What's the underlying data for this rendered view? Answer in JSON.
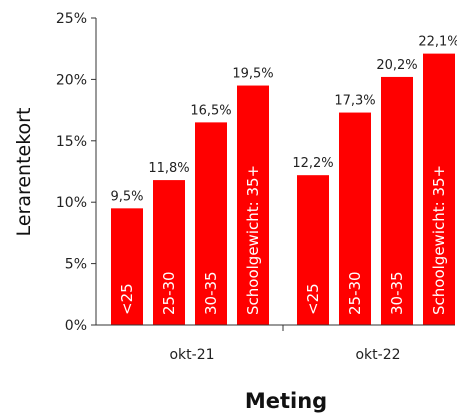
{
  "chart_data": {
    "type": "bar",
    "categories": [
      "okt-21",
      "okt-22"
    ],
    "series": [
      {
        "name": "<25",
        "values": [
          9.5,
          12.2
        ]
      },
      {
        "name": "25-30",
        "values": [
          11.8,
          17.3
        ]
      },
      {
        "name": "30-35",
        "values": [
          16.5,
          20.2
        ]
      },
      {
        "name": "Schoolgewicht: 35+",
        "values": [
          19.5,
          22.1
        ]
      }
    ],
    "value_labels": [
      [
        "9,5%",
        "11,8%",
        "16,5%",
        "19,5%"
      ],
      [
        "12,2%",
        "17,3%",
        "20,2%",
        "22,1%"
      ]
    ],
    "ylabel": "Lerarentekort",
    "xlabel": "Meting",
    "ylim": [
      0,
      25
    ],
    "yticks": [
      0,
      5,
      10,
      15,
      20,
      25
    ],
    "ytick_labels": [
      "0%",
      "5%",
      "10%",
      "15%",
      "20%",
      "25%"
    ],
    "bar_color": "#ff0000",
    "grid": false,
    "legend": "none"
  }
}
